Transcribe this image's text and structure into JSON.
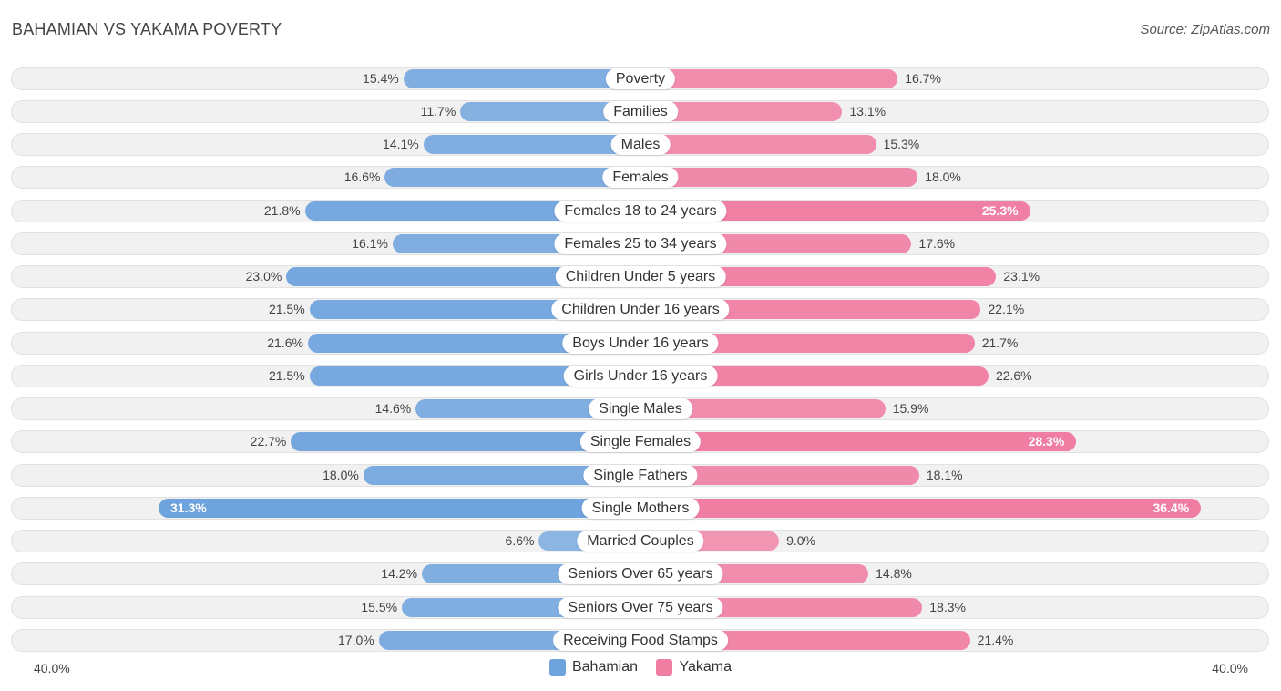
{
  "header": {
    "title": "BAHAMIAN VS YAKAMA POVERTY",
    "source": "Source: ZipAtlas.com"
  },
  "axis": {
    "left_label": "40.0%",
    "right_label": "40.0%"
  },
  "legend": {
    "left": {
      "label": "Bahamian",
      "color": "#6fa3dd"
    },
    "right": {
      "label": "Yakama",
      "color": "#f07ea2"
    }
  },
  "chart_data": {
    "type": "bar",
    "title": "BAHAMIAN VS YAKAMA POVERTY",
    "orientation": "horizontal-diverging",
    "xlim": [
      0,
      40
    ],
    "categories": [
      "Poverty",
      "Families",
      "Males",
      "Females",
      "Females 18 to 24 years",
      "Females 25 to 34 years",
      "Children Under 5 years",
      "Children Under 16 years",
      "Boys Under 16 years",
      "Girls Under 16 years",
      "Single Males",
      "Single Females",
      "Single Fathers",
      "Single Mothers",
      "Married Couples",
      "Seniors Over 65 years",
      "Seniors Over 75 years",
      "Receiving Food Stamps"
    ],
    "series": [
      {
        "name": "Bahamian",
        "values": [
          15.4,
          11.7,
          14.1,
          16.6,
          21.8,
          16.1,
          23.0,
          21.5,
          21.6,
          21.5,
          14.6,
          22.7,
          18.0,
          31.3,
          6.6,
          14.2,
          15.5,
          17.0
        ],
        "labels": [
          "15.4%",
          "11.7%",
          "14.1%",
          "16.6%",
          "21.8%",
          "16.1%",
          "23.0%",
          "21.5%",
          "21.6%",
          "21.5%",
          "14.6%",
          "22.7%",
          "18.0%",
          "31.3%",
          "6.6%",
          "14.2%",
          "15.5%",
          "17.0%"
        ]
      },
      {
        "name": "Yakama",
        "values": [
          16.7,
          13.1,
          15.3,
          18.0,
          25.3,
          17.6,
          23.1,
          22.1,
          21.7,
          22.6,
          15.9,
          28.3,
          18.1,
          36.4,
          9.0,
          14.8,
          18.3,
          21.4
        ],
        "labels": [
          "16.7%",
          "13.1%",
          "15.3%",
          "18.0%",
          "25.3%",
          "17.6%",
          "23.1%",
          "22.1%",
          "21.7%",
          "22.6%",
          "15.9%",
          "28.3%",
          "18.1%",
          "36.4%",
          "9.0%",
          "14.8%",
          "18.3%",
          "21.4%"
        ]
      }
    ]
  }
}
